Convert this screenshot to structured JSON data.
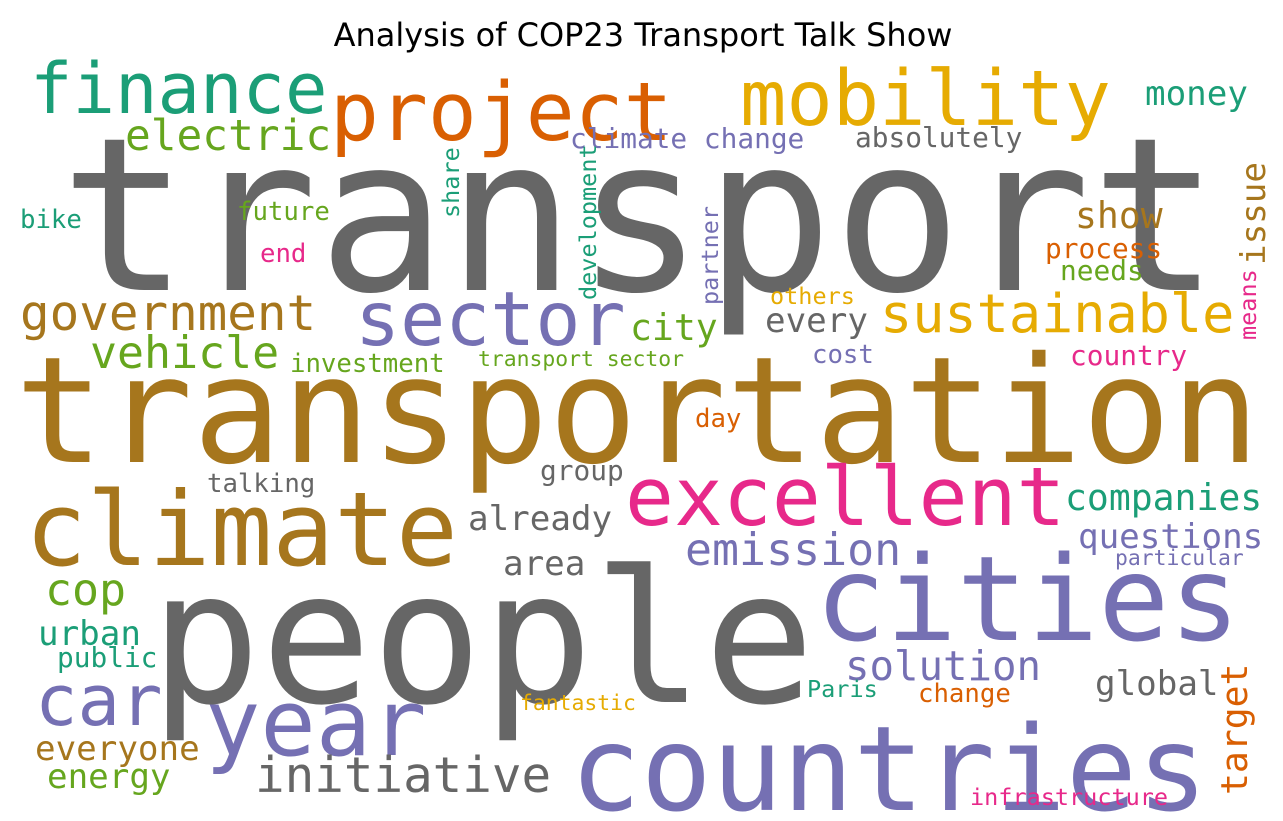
{
  "chart_data": {
    "type": "wordcloud",
    "title": "Analysis of COP23 Transport Talk Show",
    "words": [
      {
        "text": "transport",
        "value": 1.0,
        "color": "#666666"
      },
      {
        "text": "transportation",
        "value": 0.69,
        "color": "#a6761d"
      },
      {
        "text": "people",
        "value": 0.86,
        "color": "#666666"
      },
      {
        "text": "climate",
        "value": 0.48,
        "color": "#a6761d"
      },
      {
        "text": "cities",
        "value": 0.55,
        "color": "#7570b3"
      },
      {
        "text": "countries",
        "value": 0.55,
        "color": "#7570b3"
      },
      {
        "text": "excellent",
        "value": 0.38,
        "color": "#e7298a"
      },
      {
        "text": "finance",
        "value": 0.33,
        "color": "#1b9e77"
      },
      {
        "text": "project",
        "value": 0.38,
        "color": "#d95f02"
      },
      {
        "text": "mobility",
        "value": 0.36,
        "color": "#e6ab02"
      },
      {
        "text": "sector",
        "value": 0.35,
        "color": "#7570b3"
      },
      {
        "text": "sustainable",
        "value": 0.25,
        "color": "#e6ab02"
      },
      {
        "text": "government",
        "value": 0.23,
        "color": "#a6761d"
      },
      {
        "text": "vehicle",
        "value": 0.21,
        "color": "#66a61e"
      },
      {
        "text": "year",
        "value": 0.43,
        "color": "#7570b3"
      },
      {
        "text": "car",
        "value": 0.33,
        "color": "#7570b3"
      },
      {
        "text": "emission",
        "value": 0.21,
        "color": "#7570b3"
      },
      {
        "text": "solution",
        "value": 0.19,
        "color": "#7570b3"
      },
      {
        "text": "initiative",
        "value": 0.23,
        "color": "#666666"
      },
      {
        "text": "electric",
        "value": 0.2,
        "color": "#66a61e"
      },
      {
        "text": "money",
        "value": 0.16,
        "color": "#1b9e77"
      },
      {
        "text": "climate change",
        "value": 0.13,
        "color": "#7570b3"
      },
      {
        "text": "absolutely",
        "value": 0.13,
        "color": "#666666"
      },
      {
        "text": "bike",
        "value": 0.12,
        "color": "#1b9e77"
      },
      {
        "text": "future",
        "value": 0.12,
        "color": "#66a61e"
      },
      {
        "text": "end",
        "value": 0.12,
        "color": "#e7298a"
      },
      {
        "text": "show",
        "value": 0.17,
        "color": "#a6761d"
      },
      {
        "text": "process",
        "value": 0.13,
        "color": "#d95f02"
      },
      {
        "text": "needs",
        "value": 0.13,
        "color": "#66a61e"
      },
      {
        "text": "others",
        "value": 0.11,
        "color": "#e6ab02"
      },
      {
        "text": "city",
        "value": 0.17,
        "color": "#66a61e"
      },
      {
        "text": "every",
        "value": 0.16,
        "color": "#666666"
      },
      {
        "text": "investment",
        "value": 0.12,
        "color": "#66a61e"
      },
      {
        "text": "transport sector",
        "value": 0.1,
        "color": "#66a61e"
      },
      {
        "text": "cost",
        "value": 0.12,
        "color": "#7570b3"
      },
      {
        "text": "country",
        "value": 0.13,
        "color": "#e7298a"
      },
      {
        "text": "day",
        "value": 0.12,
        "color": "#d95f02"
      },
      {
        "text": "talking",
        "value": 0.12,
        "color": "#666666"
      },
      {
        "text": "group",
        "value": 0.13,
        "color": "#666666"
      },
      {
        "text": "already",
        "value": 0.16,
        "color": "#666666"
      },
      {
        "text": "companies",
        "value": 0.17,
        "color": "#1b9e77"
      },
      {
        "text": "questions",
        "value": 0.16,
        "color": "#7570b3"
      },
      {
        "text": "particular",
        "value": 0.1,
        "color": "#7570b3"
      },
      {
        "text": "area",
        "value": 0.16,
        "color": "#666666"
      },
      {
        "text": "cop",
        "value": 0.21,
        "color": "#66a61e"
      },
      {
        "text": "urban",
        "value": 0.16,
        "color": "#1b9e77"
      },
      {
        "text": "public",
        "value": 0.13,
        "color": "#1b9e77"
      },
      {
        "text": "global",
        "value": 0.16,
        "color": "#666666"
      },
      {
        "text": "Paris",
        "value": 0.11,
        "color": "#1b9e77"
      },
      {
        "text": "change",
        "value": 0.12,
        "color": "#d95f02"
      },
      {
        "text": "fantastic",
        "value": 0.1,
        "color": "#e6ab02"
      },
      {
        "text": "everyone",
        "value": 0.16,
        "color": "#a6761d"
      },
      {
        "text": "energy",
        "value": 0.16,
        "color": "#66a61e"
      },
      {
        "text": "infrastructure",
        "value": 0.11,
        "color": "#e7298a"
      },
      {
        "text": "issue",
        "value": 0.16,
        "color": "#a6761d"
      },
      {
        "text": "target",
        "value": 0.17,
        "color": "#d95f02"
      },
      {
        "text": "development",
        "value": 0.11,
        "color": "#1b9e77"
      },
      {
        "text": "share",
        "value": 0.11,
        "color": "#1b9e77"
      },
      {
        "text": "partner",
        "value": 0.11,
        "color": "#7570b3"
      },
      {
        "text": "means",
        "value": 0.11,
        "color": "#e7298a"
      }
    ]
  }
}
